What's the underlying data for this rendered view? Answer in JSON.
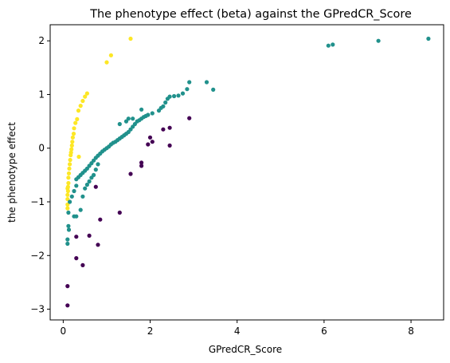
{
  "chart_data": {
    "type": "scatter",
    "title": "The phenotype effect (beta) against the GPredCR_Score",
    "xlabel": "GPredCR_Score",
    "ylabel": "the phenotype effect",
    "xlim": [
      -0.3,
      8.75
    ],
    "ylim": [
      -3.2,
      2.3
    ],
    "xticks": [
      0,
      2,
      4,
      6,
      8
    ],
    "yticks": [
      -3,
      -2,
      -1,
      0,
      1,
      2
    ],
    "grid": false,
    "legend": "none",
    "series": [
      {
        "color": "#fde725",
        "points": [
          [
            1.55,
            2.04
          ],
          [
            1.1,
            1.73
          ],
          [
            1.0,
            1.6
          ],
          [
            0.55,
            1.02
          ],
          [
            0.5,
            0.96
          ],
          [
            0.45,
            0.88
          ],
          [
            0.4,
            0.79
          ],
          [
            0.35,
            0.7
          ],
          [
            0.32,
            0.54
          ],
          [
            0.28,
            0.47
          ],
          [
            0.25,
            0.37
          ],
          [
            0.24,
            0.27
          ],
          [
            0.22,
            0.2
          ],
          [
            0.21,
            0.12
          ],
          [
            0.2,
            0.05
          ],
          [
            0.19,
            -0.02
          ],
          [
            0.18,
            -0.08
          ],
          [
            0.17,
            -0.13
          ],
          [
            0.36,
            -0.16
          ],
          [
            0.16,
            -0.22
          ],
          [
            0.15,
            -0.3
          ],
          [
            0.14,
            -0.38
          ],
          [
            0.13,
            -0.47
          ],
          [
            0.12,
            -0.55
          ],
          [
            0.12,
            -0.65
          ],
          [
            0.11,
            -0.72
          ],
          [
            0.11,
            -0.8
          ],
          [
            0.1,
            -0.87
          ],
          [
            0.1,
            -0.95
          ],
          [
            0.1,
            -1.05
          ],
          [
            0.1,
            -1.12
          ],
          [
            0.1,
            -0.75
          ]
        ]
      },
      {
        "color": "#21918c",
        "points": [
          [
            8.4,
            2.04
          ],
          [
            7.25,
            2.0
          ],
          [
            6.2,
            1.93
          ],
          [
            6.1,
            1.91
          ],
          [
            3.45,
            1.09
          ],
          [
            3.3,
            1.23
          ],
          [
            2.9,
            1.23
          ],
          [
            2.85,
            1.1
          ],
          [
            2.75,
            1.02
          ],
          [
            2.65,
            0.98
          ],
          [
            2.55,
            0.97
          ],
          [
            2.45,
            0.96
          ],
          [
            2.4,
            0.92
          ],
          [
            2.35,
            0.85
          ],
          [
            2.3,
            0.78
          ],
          [
            2.25,
            0.75
          ],
          [
            2.2,
            0.7
          ],
          [
            2.05,
            0.65
          ],
          [
            1.95,
            0.62
          ],
          [
            1.9,
            0.6
          ],
          [
            1.85,
            0.58
          ],
          [
            1.8,
            0.55
          ],
          [
            1.75,
            0.52
          ],
          [
            1.7,
            0.5
          ],
          [
            1.65,
            0.45
          ],
          [
            1.6,
            0.4
          ],
          [
            1.55,
            0.35
          ],
          [
            1.5,
            0.3
          ],
          [
            1.45,
            0.27
          ],
          [
            1.4,
            0.24
          ],
          [
            1.35,
            0.21
          ],
          [
            1.3,
            0.18
          ],
          [
            1.25,
            0.15
          ],
          [
            1.2,
            0.12
          ],
          [
            1.15,
            0.1
          ],
          [
            1.1,
            0.07
          ],
          [
            1.05,
            0.03
          ],
          [
            1.0,
            0.0
          ],
          [
            0.95,
            -0.03
          ],
          [
            0.9,
            -0.06
          ],
          [
            0.85,
            -0.1
          ],
          [
            0.8,
            -0.14
          ],
          [
            0.75,
            -0.18
          ],
          [
            0.7,
            -0.23
          ],
          [
            0.65,
            -0.28
          ],
          [
            0.6,
            -0.33
          ],
          [
            0.55,
            -0.38
          ],
          [
            0.5,
            -0.42
          ],
          [
            0.45,
            -0.46
          ],
          [
            0.4,
            -0.5
          ],
          [
            0.35,
            -0.54
          ],
          [
            0.3,
            -0.58
          ],
          [
            0.3,
            -0.7
          ],
          [
            0.25,
            -0.8
          ],
          [
            0.2,
            -0.9
          ],
          [
            0.15,
            -1.0
          ],
          [
            0.12,
            -1.2
          ],
          [
            0.12,
            -1.45
          ],
          [
            0.13,
            -1.52
          ],
          [
            0.1,
            -1.7
          ],
          [
            0.1,
            -1.78
          ],
          [
            1.8,
            0.72
          ],
          [
            1.6,
            0.55
          ],
          [
            1.5,
            0.55
          ],
          [
            1.45,
            0.5
          ],
          [
            1.3,
            0.45
          ],
          [
            0.8,
            -0.3
          ],
          [
            0.75,
            -0.4
          ],
          [
            0.7,
            -0.5
          ],
          [
            0.65,
            -0.55
          ],
          [
            0.6,
            -0.62
          ],
          [
            0.55,
            -0.68
          ],
          [
            0.5,
            -0.75
          ],
          [
            0.45,
            -0.9
          ],
          [
            0.4,
            -1.15
          ],
          [
            0.3,
            -1.27
          ],
          [
            0.25,
            -1.27
          ]
        ]
      },
      {
        "color": "#440154",
        "points": [
          [
            2.9,
            0.56
          ],
          [
            2.45,
            0.38
          ],
          [
            2.3,
            0.35
          ],
          [
            2.0,
            0.2
          ],
          [
            2.05,
            0.12
          ],
          [
            1.95,
            0.07
          ],
          [
            2.45,
            0.05
          ],
          [
            1.8,
            -0.27
          ],
          [
            1.8,
            -0.33
          ],
          [
            1.55,
            -0.48
          ],
          [
            0.75,
            -0.72
          ],
          [
            1.3,
            -1.2
          ],
          [
            0.85,
            -1.33
          ],
          [
            0.6,
            -1.63
          ],
          [
            0.3,
            -1.65
          ],
          [
            0.8,
            -1.8
          ],
          [
            0.3,
            -2.05
          ],
          [
            0.45,
            -2.18
          ],
          [
            0.1,
            -2.57
          ],
          [
            0.1,
            -2.93
          ]
        ]
      }
    ]
  }
}
